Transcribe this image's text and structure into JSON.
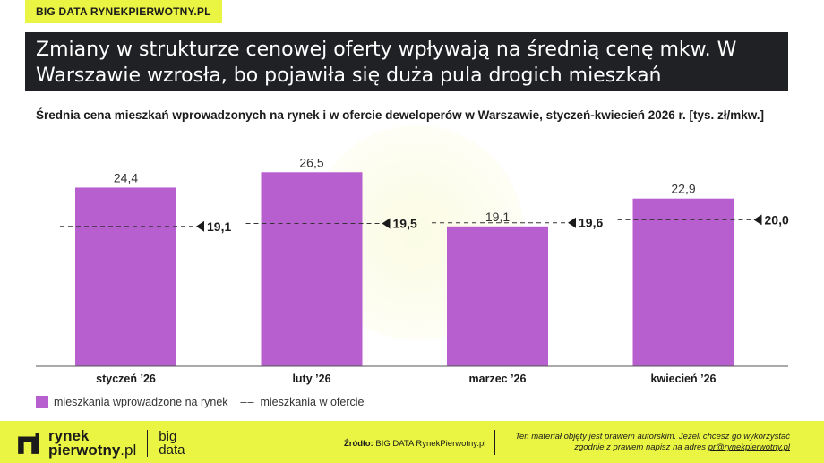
{
  "header": {
    "badge": "BIG DATA RYNEKPIERWOTNY.PL"
  },
  "title_line1": "Zmiany w strukturze cenowej oferty wpływają na średnią cenę mkw. W",
  "title_line2": "Warszawie wzrosła, bo pojawiła się duża pula drogich mieszkań",
  "chart_data": {
    "type": "bar",
    "title": "Średnia cena mieszkań wprowadzonych na rynek i w ofercie deweloperów w Warszawie, styczeń-kwiecień 2026 r. [tys. zł/mkw.]",
    "categories": [
      "styczeń ’26",
      "luty ’26",
      "marzec ’26",
      "kwiecień ’26"
    ],
    "series": [
      {
        "name": "mieszkania wprowadzone na rynek",
        "values": [
          24.4,
          26.5,
          19.1,
          22.9
        ],
        "labels": [
          "24,4",
          "26,5",
          "19,1",
          "22,9"
        ],
        "color": "#b85fcf",
        "mark": "bar"
      },
      {
        "name": "mieszkania w ofercie",
        "values": [
          19.1,
          19.5,
          19.6,
          20.0
        ],
        "labels": [
          "19,1",
          "19,5",
          "19,6",
          "20,0"
        ],
        "color": "#333333",
        "mark": "dashed-line"
      }
    ],
    "ylim": [
      0,
      28
    ],
    "grid": false,
    "legend_position": "bottom-left"
  },
  "legend": {
    "item1": "mieszkania wprowadzone na rynek",
    "dash_symbol": "––",
    "item2": "mieszkania w ofercie"
  },
  "footer": {
    "logo_line1": "rynek",
    "logo_line2": "pierwotny",
    "logo_suffix": ".pl",
    "logo2_line1": "big",
    "logo2_line2": "data",
    "source_label": "Źródło:",
    "source_text": "BIG DATA RynekPierwotny.pl",
    "copyright_line1": "Ten materiał objęty jest prawem autorskim. Jeżeli chcesz go wykorzystać",
    "copyright_line2": "zgodnie z prawem napisz na adres",
    "copyright_email": "pr@rynekpierwotny.pl"
  }
}
